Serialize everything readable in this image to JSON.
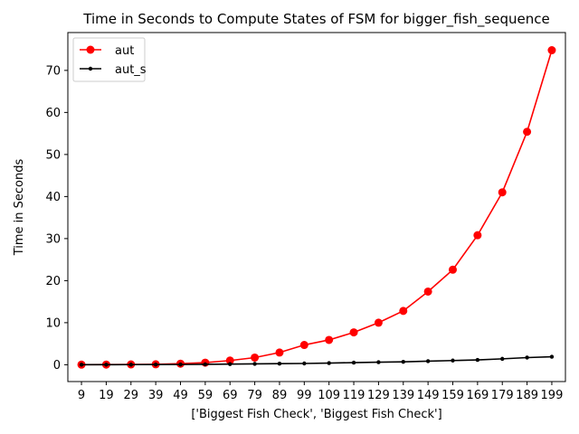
{
  "chart_data": {
    "type": "line",
    "title": "Time in Seconds to Compute States of FSM for bigger_fish_sequence",
    "xlabel": "['Biggest Fish Check', 'Biggest Fish Check']",
    "ylabel": "Time in Seconds",
    "x": [
      9,
      19,
      29,
      39,
      49,
      59,
      69,
      79,
      89,
      99,
      109,
      119,
      129,
      139,
      149,
      159,
      169,
      179,
      189,
      199
    ],
    "x_ticks": [
      "9",
      "19",
      "29",
      "39",
      "49",
      "59",
      "69",
      "79",
      "89",
      "99",
      "109",
      "119",
      "129",
      "139",
      "149",
      "159",
      "169",
      "179",
      "189",
      "199"
    ],
    "y_ticks": [
      0,
      10,
      20,
      30,
      40,
      50,
      60,
      70
    ],
    "ylim": [
      -4,
      79
    ],
    "xlim": [
      3.5,
      204.5
    ],
    "grid": false,
    "legend_position": "top-left",
    "series": [
      {
        "name": "aut",
        "color": "#ff0000",
        "marker": "circle-large",
        "values": [
          0.02,
          0.04,
          0.08,
          0.1,
          0.25,
          0.5,
          1.0,
          1.7,
          2.9,
          4.7,
          5.9,
          7.7,
          10.0,
          12.8,
          17.4,
          22.6,
          30.8,
          41.0,
          55.4,
          74.8
        ]
      },
      {
        "name": "aut_s",
        "color": "#000000",
        "marker": "circle-small",
        "values": [
          0.01,
          0.02,
          0.03,
          0.04,
          0.06,
          0.1,
          0.15,
          0.2,
          0.25,
          0.3,
          0.4,
          0.5,
          0.6,
          0.7,
          0.85,
          1.0,
          1.15,
          1.4,
          1.7,
          1.9
        ]
      }
    ]
  }
}
